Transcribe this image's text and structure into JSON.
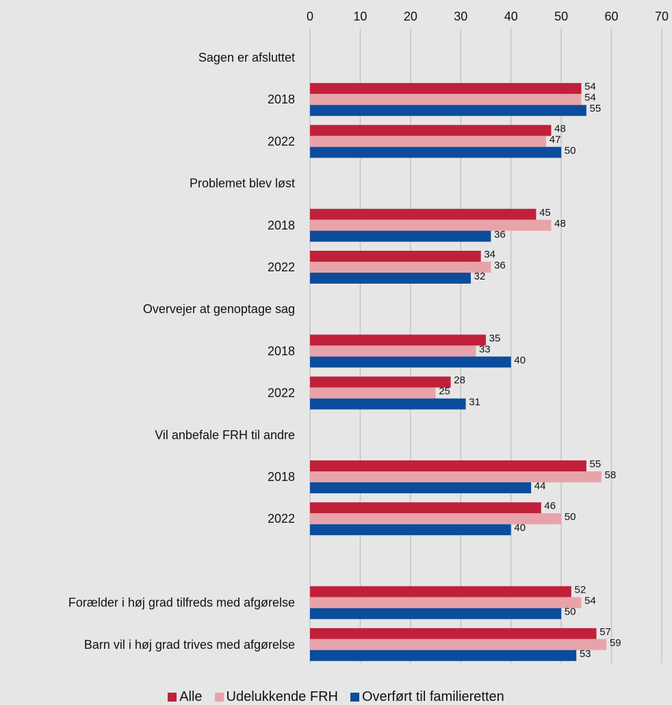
{
  "colors": {
    "Alle": "#c0203a",
    "Udelukkende FRH": "#e8a3aa",
    "Overført til familieretten": "#0b4d9c",
    "grid": "#c4c4c4",
    "background": "#e6e6e6"
  },
  "chart_data": {
    "type": "bar",
    "orientation": "horizontal",
    "xlim": [
      0,
      70
    ],
    "xticks": [
      0,
      10,
      20,
      30,
      40,
      50,
      60,
      70
    ],
    "xaxis_position": "top",
    "grid": true,
    "legend_position": "bottom",
    "series_names": [
      "Alle",
      "Udelukkende FRH",
      "Overført til familieretten"
    ],
    "rows": [
      {
        "label": "Sagen er afsluttet",
        "header": true
      },
      {
        "label": "2018",
        "values": [
          54,
          54,
          55
        ]
      },
      {
        "label": "2022",
        "values": [
          48,
          47,
          50
        ]
      },
      {
        "label": "Problemet blev løst",
        "header": true
      },
      {
        "label": "2018",
        "values": [
          45,
          48,
          36
        ]
      },
      {
        "label": "2022",
        "values": [
          34,
          36,
          32
        ]
      },
      {
        "label": "Overvejer at genoptage sag",
        "header": true
      },
      {
        "label": "2018",
        "values": [
          35,
          33,
          40
        ]
      },
      {
        "label": "2022",
        "values": [
          28,
          25,
          31
        ]
      },
      {
        "label": "Vil anbefale FRH til andre",
        "header": true
      },
      {
        "label": "2018",
        "values": [
          55,
          58,
          44
        ]
      },
      {
        "label": "2022",
        "values": [
          46,
          50,
          40
        ]
      },
      {
        "label": "",
        "header": true
      },
      {
        "label": "Forælder i høj grad tilfreds med afgørelse",
        "values": [
          52,
          54,
          50
        ]
      },
      {
        "label": "Barn vil i høj grad trives med afgørelse",
        "values": [
          57,
          59,
          53
        ]
      }
    ]
  },
  "legend": [
    {
      "label": "Alle",
      "color": "#c0203a"
    },
    {
      "label": "Udelukkende FRH",
      "color": "#e8a3aa"
    },
    {
      "label": "Overført til familieretten",
      "color": "#0b4d9c"
    }
  ]
}
